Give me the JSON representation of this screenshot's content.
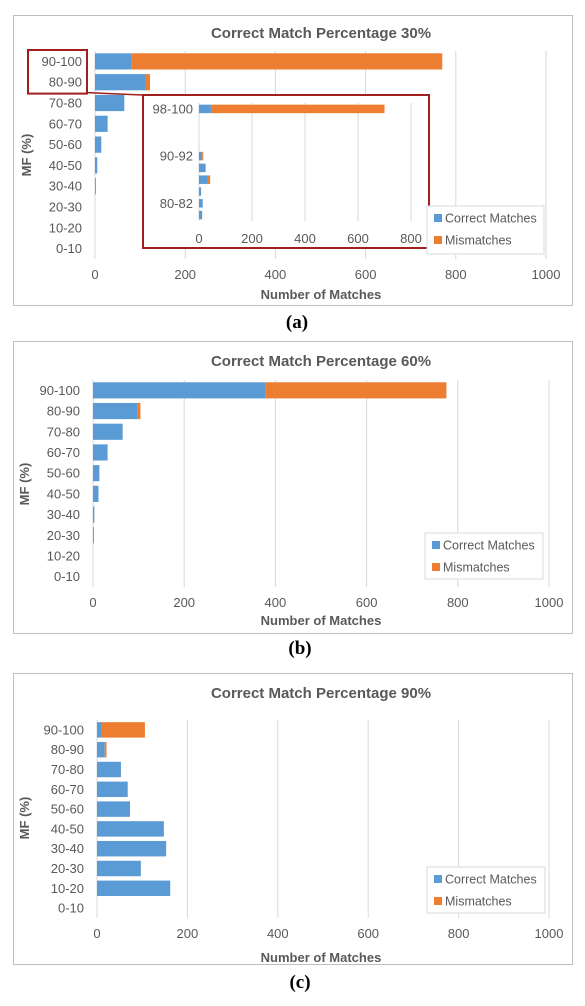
{
  "colors": {
    "correct": "#5B9BD5",
    "mismatch": "#ED7D31",
    "grid": "#D9D9D9",
    "frame": "#BFBFBF",
    "text": "#595959",
    "inset": "#A01E1E"
  },
  "chart_data": [
    {
      "type": "bar",
      "orientation": "horizontal",
      "stacked": true,
      "title": "Correct Match  Percentage 30%",
      "caption": "(a)",
      "xlabel": "Number of Matches",
      "ylabel": "MF (%)",
      "xlim": [
        0,
        1000
      ],
      "xticks": [
        0,
        200,
        400,
        600,
        800,
        1000
      ],
      "categories": [
        "90-100",
        "80-90",
        "70-80",
        "60-70",
        "50-60",
        "40-50",
        "30-40",
        "20-30",
        "10-20",
        "0-10"
      ],
      "series": [
        {
          "name": "Correct Matches",
          "values": [
            80,
            112,
            65,
            28,
            14,
            5,
            2,
            0,
            0,
            0
          ]
        },
        {
          "name": "Mismatches",
          "values": [
            690,
            10,
            0,
            0,
            0,
            0,
            0,
            0,
            0,
            0
          ]
        }
      ],
      "legend": "bottom-right",
      "highlighted_categories": [
        "90-100",
        "80-90"
      ],
      "inset": {
        "categories": [
          "98-100",
          "",
          "",
          "",
          "90-92",
          "",
          "",
          "",
          "80-82",
          ""
        ],
        "xlim": [
          0,
          800
        ],
        "xticks": [
          0,
          200,
          400,
          600,
          800
        ],
        "series": [
          {
            "name": "Correct Matches",
            "values": [
              45,
              0,
              0,
              0,
              12,
              25,
              32,
              8,
              14,
              12
            ]
          },
          {
            "name": "Mismatches",
            "values": [
              655,
              0,
              0,
              0,
              4,
              0,
              10,
              0,
              0,
              0
            ]
          }
        ]
      }
    },
    {
      "type": "bar",
      "orientation": "horizontal",
      "stacked": true,
      "title": "Correct Match  Percentage 60%",
      "caption": "(b)",
      "xlabel": "Number of Matches",
      "ylabel": "MF (%)",
      "xlim": [
        0,
        1000
      ],
      "xticks": [
        0,
        200,
        400,
        600,
        800,
        1000
      ],
      "categories": [
        "90-100",
        "80-90",
        "70-80",
        "60-70",
        "50-60",
        "40-50",
        "30-40",
        "20-30",
        "10-20",
        "0-10"
      ],
      "series": [
        {
          "name": "Correct Matches",
          "values": [
            378,
            98,
            65,
            32,
            14,
            12,
            3,
            2,
            0,
            0
          ]
        },
        {
          "name": "Mismatches",
          "values": [
            397,
            6,
            0,
            0,
            0,
            0,
            0,
            0,
            0,
            0
          ]
        }
      ],
      "legend": "bottom-right"
    },
    {
      "type": "bar",
      "orientation": "horizontal",
      "stacked": true,
      "title": "Correct Match  Percentage 90%",
      "caption": "(c)",
      "xlabel": "Number of Matches",
      "ylabel": "MF (%)",
      "xlim": [
        0,
        1000
      ],
      "xticks": [
        0,
        200,
        400,
        600,
        800,
        1000
      ],
      "categories": [
        "90-100",
        "80-90",
        "70-80",
        "60-70",
        "50-60",
        "40-50",
        "30-40",
        "20-30",
        "10-20",
        "0-10"
      ],
      "series": [
        {
          "name": "Correct Matches",
          "values": [
            10,
            17,
            53,
            68,
            73,
            148,
            153,
            97,
            162,
            0
          ]
        },
        {
          "name": "Mismatches",
          "values": [
            96,
            4,
            0,
            0,
            0,
            0,
            0,
            0,
            0,
            0
          ]
        }
      ],
      "legend": "bottom-right"
    }
  ]
}
